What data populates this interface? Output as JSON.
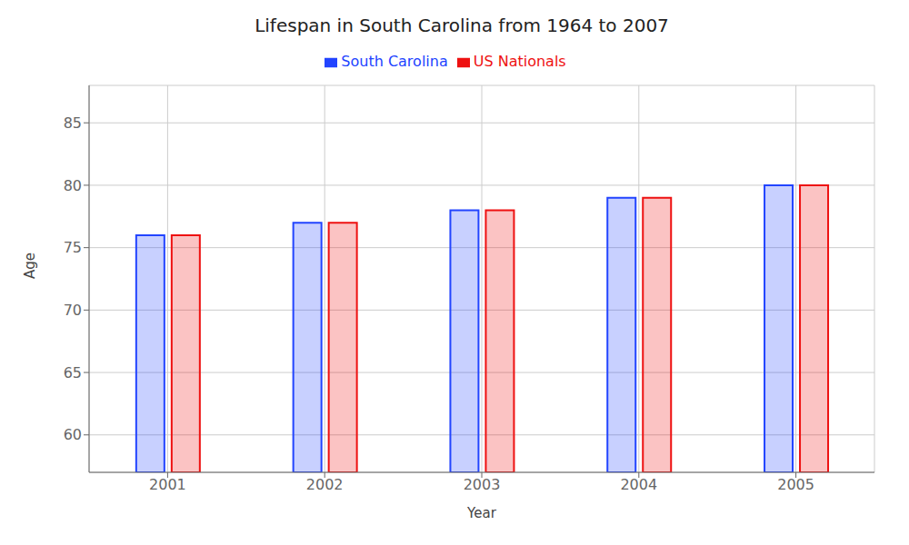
{
  "chart_data": {
    "type": "bar",
    "title": "Lifespan in South Carolina from 1964 to 2007",
    "x_label": "Year",
    "y_label": "Age",
    "categories": [
      "2001",
      "2002",
      "2003",
      "2004",
      "2005"
    ],
    "series": [
      {
        "name": "South Carolina",
        "color": "#2244ff",
        "values": [
          76,
          77,
          78,
          79,
          80
        ]
      },
      {
        "name": "US Nationals",
        "color": "#ee1111",
        "values": [
          76,
          77,
          78,
          79,
          80
        ]
      }
    ],
    "ylim": [
      57,
      88
    ],
    "yticks": [
      60,
      65,
      70,
      75,
      80,
      85
    ],
    "grid": true,
    "legend": "top"
  }
}
